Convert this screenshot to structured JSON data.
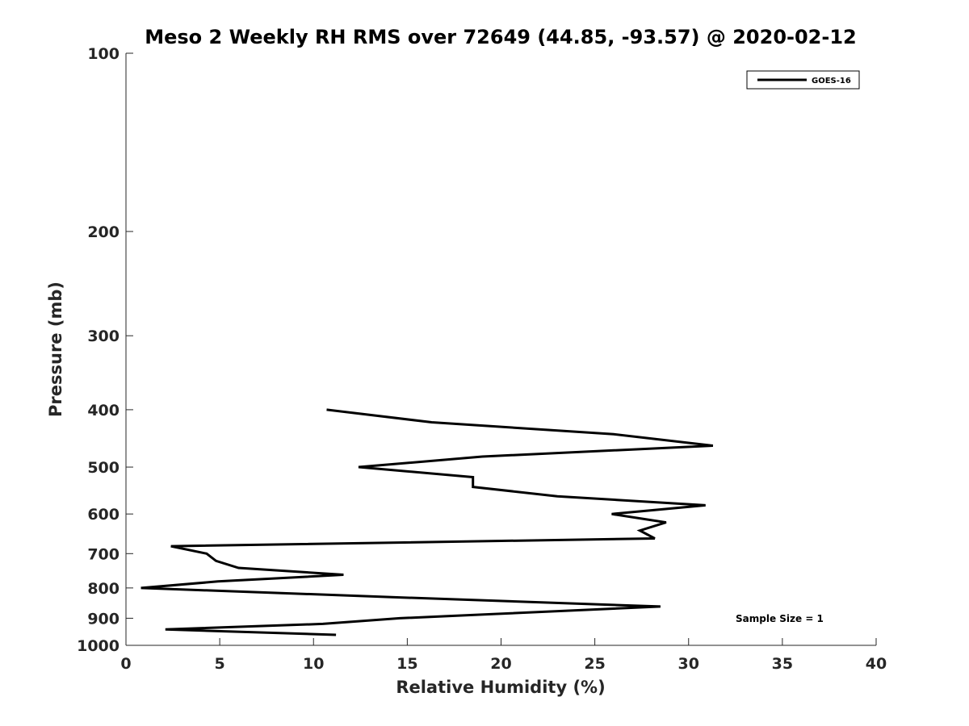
{
  "chart_data": {
    "type": "line",
    "title": "Meso 2 Weekly RH RMS over 72649 (44.85, -93.57) @ 2020-02-12",
    "xlabel": "Relative Humidity (%)",
    "ylabel": "Pressure (mb)",
    "xlim": [
      0,
      40
    ],
    "ylim": [
      100,
      1000
    ],
    "y_scale": "log",
    "y_reversed": true,
    "grid": false,
    "legend_position": "top-right",
    "x_ticks": [
      0,
      5,
      10,
      15,
      20,
      25,
      30,
      35,
      40
    ],
    "x_tick_labels": [
      "0",
      "5",
      "10",
      "15",
      "20",
      "25",
      "30",
      "35",
      "40"
    ],
    "y_ticks": [
      100,
      200,
      300,
      400,
      500,
      600,
      700,
      800,
      900,
      1000
    ],
    "y_tick_labels": [
      "100",
      "200",
      "300",
      "400",
      "500",
      "600",
      "700",
      "800",
      "900",
      "1000"
    ],
    "annotation": "Sample Size = 1",
    "series": [
      {
        "name": "GOES-16",
        "color": "#000000",
        "points": [
          {
            "x": 10.7,
            "p": 400
          },
          {
            "x": 16.3,
            "p": 420
          },
          {
            "x": 26.0,
            "p": 440
          },
          {
            "x": 31.3,
            "p": 460
          },
          {
            "x": 19.0,
            "p": 480
          },
          {
            "x": 12.4,
            "p": 500
          },
          {
            "x": 18.5,
            "p": 520
          },
          {
            "x": 18.5,
            "p": 540
          },
          {
            "x": 23.0,
            "p": 560
          },
          {
            "x": 30.9,
            "p": 580
          },
          {
            "x": 25.9,
            "p": 600
          },
          {
            "x": 28.8,
            "p": 620
          },
          {
            "x": 27.4,
            "p": 640
          },
          {
            "x": 28.2,
            "p": 660
          },
          {
            "x": 2.4,
            "p": 680
          },
          {
            "x": 4.3,
            "p": 700
          },
          {
            "x": 4.8,
            "p": 720
          },
          {
            "x": 6.0,
            "p": 740
          },
          {
            "x": 11.6,
            "p": 760
          },
          {
            "x": 4.9,
            "p": 780
          },
          {
            "x": 0.8,
            "p": 800
          },
          {
            "x": 14.6,
            "p": 830
          },
          {
            "x": 28.5,
            "p": 860
          },
          {
            "x": 14.6,
            "p": 900
          },
          {
            "x": 10.5,
            "p": 920
          },
          {
            "x": 2.1,
            "p": 940
          },
          {
            "x": 11.2,
            "p": 960
          }
        ]
      }
    ]
  }
}
